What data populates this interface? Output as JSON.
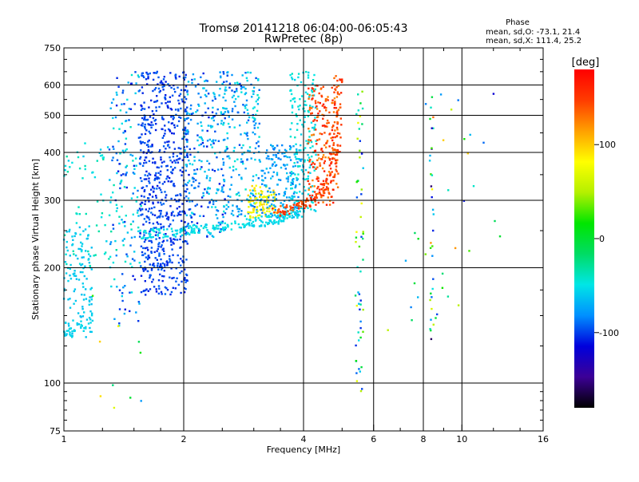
{
  "header": {
    "title_line1": "Tromsø 20141218 06:04:00-06:05:43",
    "title_line2": "RwPretec (8p)",
    "phase_heading": "Phase",
    "phase_o": "mean, sd,O: -73.1, 21.4",
    "phase_x": "mean, sd,X: 111.4, 25.2"
  },
  "chart_data": {
    "type": "scatter",
    "xscale": "log",
    "yscale": "log",
    "xlabel": "Frequency [MHz]",
    "ylabel": "Stationary phase Virtual Height [km]",
    "xlim": [
      1,
      16
    ],
    "ylim": [
      75,
      750
    ],
    "xticks": [
      1,
      2,
      4,
      6,
      8,
      10,
      16
    ],
    "yticks": [
      75,
      100,
      200,
      300,
      400,
      500,
      600,
      750
    ],
    "grid_x": [
      2,
      4,
      6,
      8,
      10
    ],
    "grid_y": [
      100,
      200,
      300,
      400,
      500,
      600
    ],
    "colorbar": {
      "label": "[deg]",
      "range": [
        -180,
        180
      ],
      "ticks": [
        100,
        0,
        -100
      ],
      "colors": [
        "#000000",
        "#3c0096",
        "#0000dc",
        "#0090ff",
        "#00e6e6",
        "#00dc64",
        "#00e600",
        "#b4f000",
        "#ffff00",
        "#ffa000",
        "#ff3c00",
        "#ff0000"
      ]
    },
    "clusters": [
      {
        "f": [
          1.55,
          2.05
        ],
        "h": [
          170,
          650
        ],
        "phase": [
          -110,
          -90
        ],
        "n": 650
      },
      {
        "f": [
          1.0,
          1.18
        ],
        "h": [
          130,
          260
        ],
        "phase": [
          -65,
          -55
        ],
        "n": 120
      },
      {
        "f": [
          1.0,
          1.6
        ],
        "h": [
          200,
          430
        ],
        "phase": [
          -60,
          -30
        ],
        "n": 90
      },
      {
        "f": [
          1.3,
          1.55
        ],
        "h": [
          140,
          650
        ],
        "phase": [
          -110,
          -40
        ],
        "n": 140
      },
      {
        "f": [
          2.0,
          2.55
        ],
        "h": [
          240,
          650
        ],
        "phase": [
          -110,
          -50
        ],
        "n": 260
      },
      {
        "f": [
          2.5,
          3.1
        ],
        "h": [
          270,
          650
        ],
        "phase": [
          -100,
          -40
        ],
        "n": 220
      },
      {
        "f": [
          2.9,
          3.4
        ],
        "h": [
          270,
          330
        ],
        "phase": [
          60,
          100
        ],
        "n": 90
      },
      {
        "f": [
          3.1,
          4.0
        ],
        "h": [
          270,
          420
        ],
        "phase": [
          -90,
          -60
        ],
        "n": 170
      },
      {
        "f": [
          3.7,
          4.3
        ],
        "h": [
          280,
          650
        ],
        "phase": [
          -60,
          -40
        ],
        "n": 170
      },
      {
        "f": [
          4.1,
          4.9
        ],
        "h": [
          290,
          600
        ],
        "phase": [
          120,
          170
        ],
        "n": 200
      },
      {
        "f": [
          5.4,
          5.65
        ],
        "h": [
          95,
          620
        ],
        "phase": [
          -110,
          80
        ],
        "n": 60
      },
      {
        "f": [
          8.3,
          8.5
        ],
        "h": [
          130,
          560
        ],
        "phase": [
          -160,
          160
        ],
        "n": 30
      },
      {
        "f": [
          6.2,
          12.5
        ],
        "h": [
          120,
          650
        ],
        "phase": [
          -120,
          150
        ],
        "n": 35
      },
      {
        "f": [
          1.15,
          1.6
        ],
        "h": [
          85,
          180
        ],
        "phase": [
          -80,
          100
        ],
        "n": 10
      }
    ],
    "traces": [
      {
        "f": [
          1.55,
          1.8,
          2.2,
          2.7,
          3.2,
          3.6,
          3.95
        ],
        "h": [
          245,
          247,
          252,
          258,
          265,
          272,
          280
        ],
        "phase": [
          -60,
          -45
        ],
        "n": 220
      },
      {
        "f": [
          3.4,
          3.8,
          4.2,
          4.5,
          4.75,
          4.85,
          4.9
        ],
        "h": [
          278,
          288,
          300,
          320,
          360,
          440,
          640
        ],
        "phase": [
          130,
          165
        ],
        "n": 170
      },
      {
        "f": [
          1.0,
          1.05,
          1.1,
          1.18
        ],
        "h": [
          133,
          135,
          140,
          145
        ],
        "phase": [
          -60,
          -50
        ],
        "n": 30
      }
    ]
  }
}
